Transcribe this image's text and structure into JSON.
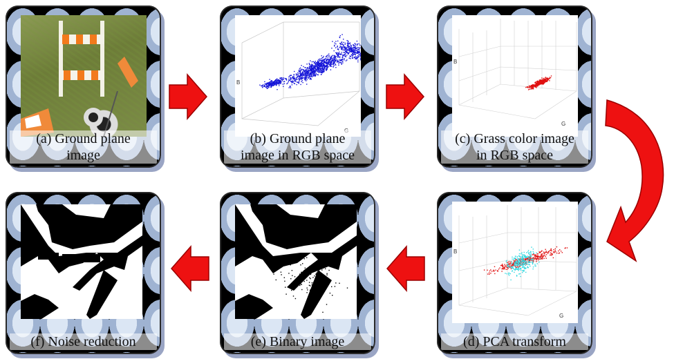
{
  "steps": [
    {
      "id": "a",
      "caption_line1": "(a) Ground plane",
      "caption_line2": "image"
    },
    {
      "id": "b",
      "caption_line1": "(b) Ground plane",
      "caption_line2": "image in RGB space",
      "axis_b": "B",
      "axis_g": "G",
      "point_color": "#1515d8"
    },
    {
      "id": "c",
      "caption_line1": "(c) Grass color image",
      "caption_line2": "in RGB space",
      "axis_b": "B",
      "axis_g": "G",
      "point_color": "#e01010"
    },
    {
      "id": "d",
      "caption_line1": "(d) PCA transform",
      "axis_b": "B",
      "axis_g": "G",
      "point_color_1": "#e01010",
      "point_color_2": "#30d8e0"
    },
    {
      "id": "e",
      "caption_line1": "(e) Binary image"
    },
    {
      "id": "f",
      "caption_line1": "(f) Noise reduction"
    }
  ],
  "arrow_color": "#ee1111",
  "arrow_outline": "#9a0000"
}
